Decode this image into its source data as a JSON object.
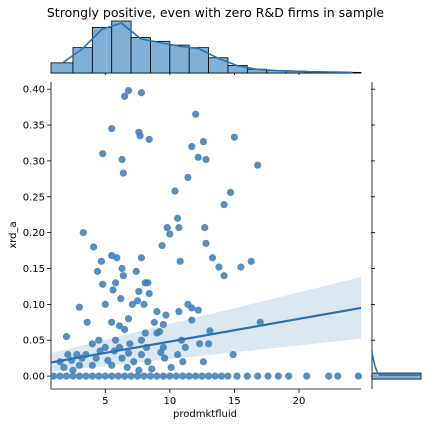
{
  "chart_data": {
    "type": "scatter",
    "title": "Strongly positive, even with zero R&D firms in sample",
    "xlabel": "prodmktfluid",
    "ylabel": "xrd_a",
    "xlim": [
      0.8,
      24.8
    ],
    "ylim": [
      -0.018,
      0.41
    ],
    "xticks": [
      5,
      10,
      15,
      20
    ],
    "yticks": [
      0.0,
      0.05,
      0.1,
      0.15,
      0.2,
      0.25,
      0.3,
      0.35,
      0.4
    ],
    "ytick_labels": [
      "0.00",
      "0.05",
      "0.10",
      "0.15",
      "0.20",
      "0.25",
      "0.30",
      "0.35",
      "0.40"
    ],
    "color": "#3a7db5",
    "regression": {
      "x": [
        0.8,
        24.8
      ],
      "y": [
        0.019,
        0.095
      ],
      "ci_lower": [
        0.006,
        0.052
      ],
      "ci_upper": [
        0.032,
        0.138
      ]
    },
    "points": [
      [
        6.8,
        0.398
      ],
      [
        6.5,
        0.39
      ],
      [
        7.8,
        0.395
      ],
      [
        12.0,
        0.365
      ],
      [
        12.6,
        0.327
      ],
      [
        5.5,
        0.345
      ],
      [
        7.6,
        0.34
      ],
      [
        7.7,
        0.335
      ],
      [
        8.4,
        0.33
      ],
      [
        15.0,
        0.333
      ],
      [
        11.7,
        0.32
      ],
      [
        12.2,
        0.305
      ],
      [
        12.8,
        0.302
      ],
      [
        4.8,
        0.31
      ],
      [
        6.3,
        0.302
      ],
      [
        6.4,
        0.283
      ],
      [
        16.8,
        0.294
      ],
      [
        10.4,
        0.258
      ],
      [
        11.4,
        0.277
      ],
      [
        14.7,
        0.256
      ],
      [
        14.2,
        0.239
      ],
      [
        10.6,
        0.22
      ],
      [
        10.7,
        0.207
      ],
      [
        12.7,
        0.207
      ],
      [
        3.3,
        0.2
      ],
      [
        9.8,
        0.207
      ],
      [
        10.0,
        0.198
      ],
      [
        9.4,
        0.182
      ],
      [
        4.1,
        0.18
      ],
      [
        12.8,
        0.185
      ],
      [
        13.3,
        0.165
      ],
      [
        5.5,
        0.168
      ],
      [
        5.9,
        0.165
      ],
      [
        7.8,
        0.165
      ],
      [
        10.8,
        0.16
      ],
      [
        16.3,
        0.16
      ],
      [
        4.7,
        0.16
      ],
      [
        4.4,
        0.146
      ],
      [
        6.3,
        0.15
      ],
      [
        6.4,
        0.14
      ],
      [
        7.4,
        0.146
      ],
      [
        13.8,
        0.152
      ],
      [
        15.5,
        0.152
      ],
      [
        14.2,
        0.14
      ],
      [
        4.8,
        0.128
      ],
      [
        5.8,
        0.13
      ],
      [
        8.1,
        0.13
      ],
      [
        8.3,
        0.13
      ],
      [
        5.6,
        0.12
      ],
      [
        7.6,
        0.118
      ],
      [
        8.4,
        0.115
      ],
      [
        6.2,
        0.108
      ],
      [
        7.5,
        0.105
      ],
      [
        5.0,
        0.1
      ],
      [
        7.1,
        0.1
      ],
      [
        8.0,
        0.1
      ],
      [
        3.0,
        0.096
      ],
      [
        9.0,
        0.09
      ],
      [
        11.4,
        0.1
      ],
      [
        11.7,
        0.095
      ],
      [
        10.7,
        0.09
      ],
      [
        12.2,
        0.092
      ],
      [
        6.8,
        0.08
      ],
      [
        9.7,
        0.085
      ],
      [
        3.6,
        0.075
      ],
      [
        5.5,
        0.075
      ],
      [
        6.1,
        0.07
      ],
      [
        8.8,
        0.075
      ],
      [
        9.5,
        0.072
      ],
      [
        11.7,
        0.078
      ],
      [
        17.0,
        0.075
      ],
      [
        6.5,
        0.065
      ],
      [
        9.0,
        0.06
      ],
      [
        9.2,
        0.062
      ],
      [
        8.1,
        0.06
      ],
      [
        13.1,
        0.063
      ],
      [
        4.5,
        0.05
      ],
      [
        5.8,
        0.05
      ],
      [
        7.8,
        0.05
      ],
      [
        10.9,
        0.05
      ],
      [
        2.0,
        0.055
      ],
      [
        4.0,
        0.045
      ],
      [
        5.0,
        0.04
      ],
      [
        6.1,
        0.04
      ],
      [
        6.9,
        0.045
      ],
      [
        8.2,
        0.04
      ],
      [
        9.5,
        0.04
      ],
      [
        12.3,
        0.045
      ],
      [
        13.0,
        0.045
      ],
      [
        11.2,
        0.04
      ],
      [
        2.1,
        0.03
      ],
      [
        2.8,
        0.03
      ],
      [
        3.5,
        0.03
      ],
      [
        4.6,
        0.035
      ],
      [
        5.7,
        0.035
      ],
      [
        6.8,
        0.032
      ],
      [
        7.8,
        0.03
      ],
      [
        9.3,
        0.033
      ],
      [
        10.6,
        0.03
      ],
      [
        14.9,
        0.03
      ],
      [
        1.5,
        0.02
      ],
      [
        2.4,
        0.022
      ],
      [
        3.2,
        0.025
      ],
      [
        4.3,
        0.025
      ],
      [
        5.2,
        0.022
      ],
      [
        6.3,
        0.025
      ],
      [
        7.2,
        0.02
      ],
      [
        8.3,
        0.02
      ],
      [
        9.6,
        0.025
      ],
      [
        11.0,
        0.02
      ],
      [
        12.6,
        0.02
      ],
      [
        1.8,
        0.012
      ],
      [
        3.0,
        0.015
      ],
      [
        4.0,
        0.015
      ],
      [
        5.5,
        0.015
      ],
      [
        6.7,
        0.012
      ],
      [
        8.6,
        0.01
      ],
      [
        10.1,
        0.012
      ],
      [
        2.5,
        0.008
      ],
      [
        7.6,
        0.008
      ],
      [
        1.0,
        0.0
      ],
      [
        1.5,
        0.0
      ],
      [
        2.0,
        0.0
      ],
      [
        2.5,
        0.0
      ],
      [
        3.0,
        0.0
      ],
      [
        3.5,
        0.0
      ],
      [
        4.0,
        0.0
      ],
      [
        4.5,
        0.0
      ],
      [
        5.0,
        0.0
      ],
      [
        5.5,
        0.0
      ],
      [
        6.0,
        0.0
      ],
      [
        6.5,
        0.0
      ],
      [
        7.0,
        0.0
      ],
      [
        7.5,
        0.0
      ],
      [
        8.0,
        0.0
      ],
      [
        8.5,
        0.0
      ],
      [
        9.0,
        0.0
      ],
      [
        9.5,
        0.0
      ],
      [
        10.0,
        0.0
      ],
      [
        10.5,
        0.0
      ],
      [
        11.0,
        0.0
      ],
      [
        11.5,
        0.0
      ],
      [
        12.0,
        0.0
      ],
      [
        12.5,
        0.0
      ],
      [
        13.0,
        0.0
      ],
      [
        13.5,
        0.0
      ],
      [
        14.0,
        0.0
      ],
      [
        14.5,
        0.0
      ],
      [
        15.2,
        0.0
      ],
      [
        16.0,
        0.0
      ],
      [
        16.8,
        0.0
      ],
      [
        17.6,
        0.0
      ],
      [
        18.4,
        0.0
      ],
      [
        19.2,
        0.0
      ],
      [
        20.6,
        0.0
      ],
      [
        22.3,
        0.0
      ],
      [
        23.0,
        0.0
      ],
      [
        24.6,
        0.0
      ]
    ],
    "x_hist": {
      "bins": [
        0.8,
        2.5,
        4.0,
        5.5,
        7.0,
        8.5,
        10.0,
        11.5,
        13.0,
        14.5,
        16.0,
        17.5,
        19.0,
        20.5,
        22.0,
        23.5,
        24.8
      ],
      "counts": [
        8,
        20,
        36,
        41,
        28,
        25,
        22,
        20,
        12,
        6,
        3,
        2,
        1.5,
        1,
        0.8,
        0.5
      ]
    }
  }
}
